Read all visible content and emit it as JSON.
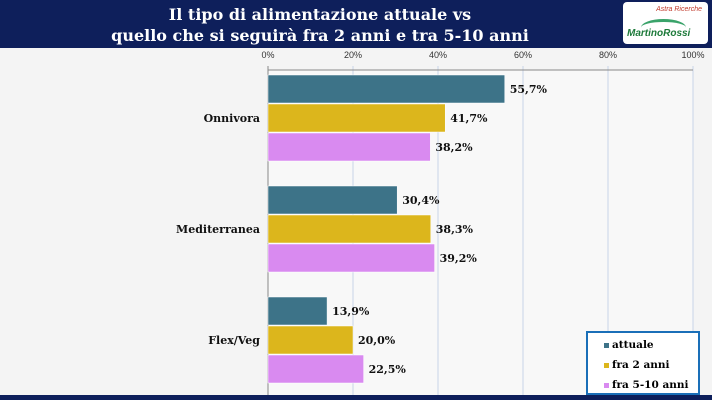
{
  "header": {
    "title_line1": "Il tipo di alimentazione attuale vs",
    "title_line2": "quello che si seguirà fra 2 anni e tra 5-10 anni",
    "logo_text_1": "Astra Ricerche",
    "logo_text_2": "MartinoRossi"
  },
  "chart_data": {
    "type": "bar",
    "orientation": "horizontal",
    "categories": [
      "Onnivora",
      "Mediterranea",
      "Flex/Veg"
    ],
    "series": [
      {
        "name": "attuale",
        "color": "#3d7388",
        "values": [
          55.7,
          30.4,
          13.9
        ],
        "labels": [
          "55,7%",
          "30,4%",
          "13,9%"
        ]
      },
      {
        "name": "fra 2 anni",
        "color": "#dcb61c",
        "values": [
          41.7,
          38.3,
          20.0
        ],
        "labels": [
          "41,7%",
          "38,3%",
          "20,0%"
        ]
      },
      {
        "name": "fra 5-10 anni",
        "color": "#d98af0",
        "values": [
          38.2,
          39.2,
          22.5
        ],
        "labels": [
          "38,2%",
          "39,2%",
          "22,5%"
        ]
      }
    ],
    "xlim": [
      0,
      100
    ],
    "ticks": [
      "0%",
      "20%",
      "40%",
      "60%",
      "80%",
      "100%"
    ],
    "grid": true,
    "legend": "bottom-right"
  }
}
